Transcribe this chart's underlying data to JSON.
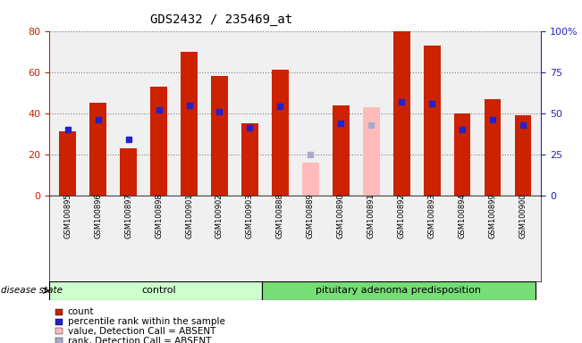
{
  "title": "GDS2432 / 235469_at",
  "samples": [
    "GSM100895",
    "GSM100896",
    "GSM100897",
    "GSM100898",
    "GSM100901",
    "GSM100902",
    "GSM100903",
    "GSM100888",
    "GSM100889",
    "GSM100890",
    "GSM100891",
    "GSM100892",
    "GSM100893",
    "GSM100894",
    "GSM100899",
    "GSM100900"
  ],
  "count_values": [
    31,
    45,
    23,
    53,
    70,
    58,
    35,
    61,
    16,
    44,
    43,
    80,
    73,
    40,
    47,
    39
  ],
  "count_absent": [
    false,
    false,
    false,
    false,
    false,
    false,
    false,
    false,
    true,
    false,
    true,
    false,
    false,
    false,
    false,
    false
  ],
  "percentile_values": [
    40,
    46,
    34,
    52,
    55,
    51,
    41,
    54,
    25,
    44,
    43,
    57,
    56,
    40,
    46,
    43
  ],
  "percentile_absent": [
    false,
    false,
    false,
    false,
    false,
    false,
    false,
    false,
    true,
    false,
    true,
    false,
    false,
    false,
    false,
    false
  ],
  "control_count": 7,
  "disease_count": 9,
  "ylim_left": [
    0,
    80
  ],
  "ylim_right": [
    0,
    100
  ],
  "left_yticks": [
    0,
    20,
    40,
    60,
    80
  ],
  "right_yticks": [
    0,
    25,
    50,
    75,
    100
  ],
  "right_yticklabels": [
    "0",
    "25",
    "50",
    "75",
    "100%"
  ],
  "color_count": "#cc2200",
  "color_count_absent": "#ffbbbb",
  "color_percentile": "#2222cc",
  "color_percentile_absent": "#aaaacc",
  "color_control_bg": "#ccffcc",
  "color_disease_bg": "#77dd77",
  "color_plot_bg": "#f0f0f0",
  "bar_width": 0.55,
  "legend_items": [
    {
      "label": "count",
      "color": "#cc2200"
    },
    {
      "label": "percentile rank within the sample",
      "color": "#2222cc"
    },
    {
      "label": "value, Detection Call = ABSENT",
      "color": "#ffbbbb"
    },
    {
      "label": "rank, Detection Call = ABSENT",
      "color": "#aaaacc"
    }
  ]
}
